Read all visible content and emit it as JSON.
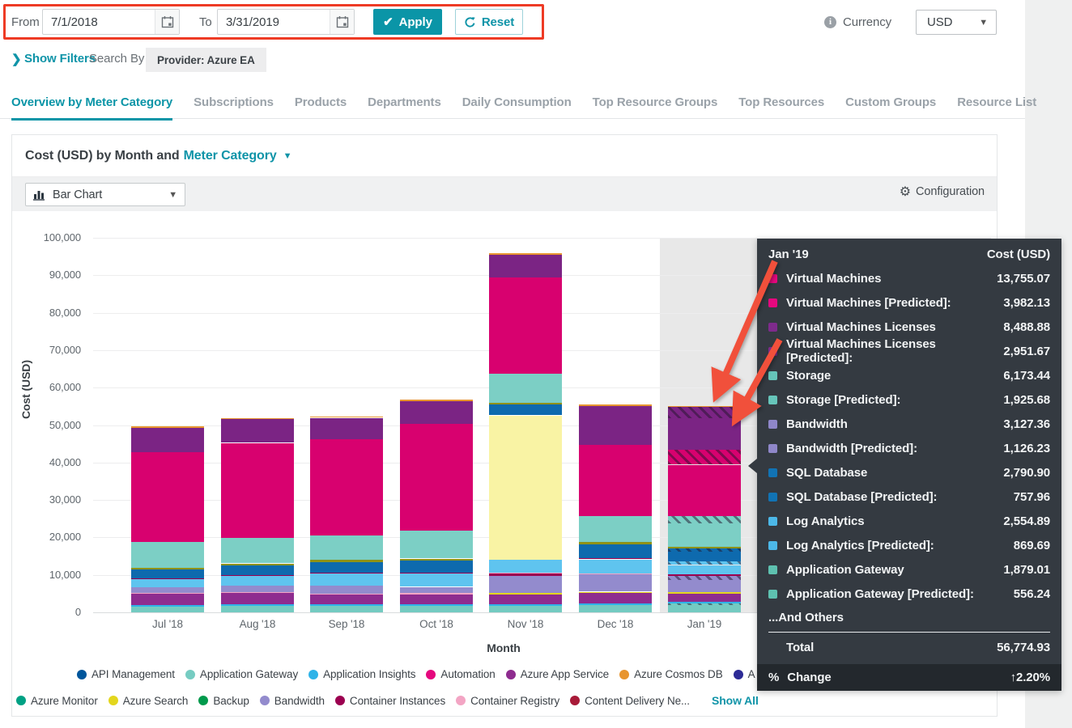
{
  "theme": {
    "accent": "#0b95a7",
    "annotation_red": "#f1503b",
    "tooltip_bg": "#343a41"
  },
  "filter_bar": {
    "from_label": "From",
    "from_value": "7/1/2018",
    "to_label": "To",
    "to_value": "3/31/2019",
    "apply_label": "Apply",
    "reset_label": "Reset",
    "currency_label": "Currency",
    "currency_value": "USD"
  },
  "filters_row": {
    "show_filters_label": "Show Filters",
    "search_by_label": "Search By",
    "provider_chip": "Provider: Azure EA"
  },
  "tabs": [
    {
      "label": "Overview by Meter Category",
      "active": true
    },
    {
      "label": "Subscriptions",
      "active": false
    },
    {
      "label": "Products",
      "active": false
    },
    {
      "label": "Departments",
      "active": false
    },
    {
      "label": "Daily Consumption",
      "active": false
    },
    {
      "label": "Top Resource Groups",
      "active": false
    },
    {
      "label": "Top Resources",
      "active": false
    },
    {
      "label": "Custom Groups",
      "active": false
    },
    {
      "label": "Resource List",
      "active": false
    }
  ],
  "chart_card": {
    "title_prefix": "Cost (USD) by Month and",
    "title_link": "Meter Category",
    "chart_type_label": "Bar Chart",
    "configuration_label": "Configuration"
  },
  "chart_data": {
    "type": "bar",
    "stacked": true,
    "title": "Cost (USD) by Month and Meter Category",
    "xlabel": "Month",
    "ylabel": "Cost (USD)",
    "ylim": [
      0,
      100000
    ],
    "ytick_step": 10000,
    "categories": [
      "Jul '18",
      "Aug '18",
      "Sep '18",
      "Oct '18",
      "Nov '18",
      "Dec '18",
      "Jan '19"
    ],
    "highlighted_category": "Jan '19",
    "palette": {
      "appGw": "#74cbc1",
      "insights": "#2eb3e8",
      "appService": "#8e2c8f",
      "registry": "#f3a5c4",
      "bandwidth": "#938bcd",
      "logAnalytics": "#5fc4ef",
      "maroon": "#9c0050",
      "sql": "#0e6aae",
      "olive": "#8f9218",
      "storage": "#7ccfc5",
      "vm": "#d8016f",
      "vmLic": "#7b2484",
      "orange": "#e8952f",
      "search": "#f9f3a4",
      "yellow": "#e3d61d"
    },
    "stacks": [
      [
        [
          "appGw",
          1600
        ],
        [
          "insights",
          400
        ],
        [
          "appService",
          3000
        ],
        [
          "registry",
          300
        ],
        [
          "bandwidth",
          1400
        ],
        [
          "logAnalytics",
          2200
        ],
        [
          "maroon",
          250
        ],
        [
          "sql",
          2250
        ],
        [
          "olive",
          450
        ],
        [
          "storage",
          7000
        ],
        [
          "vm",
          24000
        ],
        [
          "vmLic",
          6400
        ],
        [
          "orange",
          400
        ]
      ],
      [
        [
          "appGw",
          1700
        ],
        [
          "insights",
          400
        ],
        [
          "appService",
          3000
        ],
        [
          "registry",
          350
        ],
        [
          "bandwidth",
          1700
        ],
        [
          "logAnalytics",
          2600
        ],
        [
          "maroon",
          250
        ],
        [
          "sql",
          2600
        ],
        [
          "olive",
          450
        ],
        [
          "storage",
          6900
        ],
        [
          "vm",
          25300
        ],
        [
          "vmLic",
          6300
        ],
        [
          "orange",
          400
        ]
      ],
      [
        [
          "appGw",
          1700
        ],
        [
          "insights",
          400
        ],
        [
          "appService",
          2600
        ],
        [
          "registry",
          300
        ],
        [
          "bandwidth",
          2100
        ],
        [
          "logAnalytics",
          3200
        ],
        [
          "maroon",
          250
        ],
        [
          "sql",
          2900
        ],
        [
          "olive",
          500
        ],
        [
          "storage",
          6500
        ],
        [
          "vm",
          25700
        ],
        [
          "vmLic",
          5800
        ],
        [
          "orange",
          400
        ]
      ],
      [
        [
          "appGw",
          1800
        ],
        [
          "insights",
          400
        ],
        [
          "appService",
          2600
        ],
        [
          "registry",
          300
        ],
        [
          "bandwidth",
          1700
        ],
        [
          "logAnalytics",
          3600
        ],
        [
          "maroon",
          250
        ],
        [
          "sql",
          3200
        ],
        [
          "olive",
          500
        ],
        [
          "storage",
          7500
        ],
        [
          "vm",
          28500
        ],
        [
          "vmLic",
          6000
        ],
        [
          "orange",
          400
        ]
      ],
      [
        [
          "appGw",
          1800
        ],
        [
          "insights",
          400
        ],
        [
          "appService",
          2600
        ],
        [
          "yellow",
          400
        ],
        [
          "bandwidth",
          4600
        ],
        [
          "maroon",
          500
        ],
        [
          "registry",
          300
        ],
        [
          "logAnalytics",
          3400
        ],
        [
          "search",
          38600
        ],
        [
          "sql",
          2900
        ],
        [
          "olive",
          400
        ],
        [
          "storage",
          7900
        ],
        [
          "vm",
          25600
        ],
        [
          "vmLic",
          6000
        ],
        [
          "orange",
          400
        ]
      ],
      [
        [
          "appGw",
          1900
        ],
        [
          "insights",
          400
        ],
        [
          "appService",
          2800
        ],
        [
          "yellow",
          400
        ],
        [
          "bandwidth",
          4600
        ],
        [
          "registry",
          350
        ],
        [
          "logAnalytics",
          3700
        ],
        [
          "maroon",
          250
        ],
        [
          "sql",
          3800
        ],
        [
          "olive",
          500
        ],
        [
          "storage",
          7100
        ],
        [
          "vm",
          18900
        ],
        [
          "vmLic",
          10400
        ],
        [
          "orange",
          400
        ]
      ],
      [
        [
          "appGw",
          1879
        ],
        [
          "appGw",
          556,
          true
        ],
        [
          "insights",
          300
        ],
        [
          "appService",
          2300
        ],
        [
          "yellow",
          400
        ],
        [
          "bandwidth",
          3127
        ],
        [
          "bandwidth",
          1126,
          true
        ],
        [
          "maroon",
          400
        ],
        [
          "logAnalytics",
          2555
        ],
        [
          "logAnalytics",
          870,
          true
        ],
        [
          "sql",
          2791
        ],
        [
          "sql",
          758,
          true
        ],
        [
          "olive",
          500
        ],
        [
          "storage",
          6173
        ],
        [
          "storage",
          1926,
          true
        ],
        [
          "vm",
          13755
        ],
        [
          "vm",
          3982,
          true
        ],
        [
          "vmLic",
          8489
        ],
        [
          "vmLic",
          2952,
          true
        ],
        [
          "orange",
          300
        ]
      ]
    ]
  },
  "tooltip": {
    "title": "Jan '19",
    "value_header": "Cost (USD)",
    "rows": [
      {
        "label": "Virtual Machines",
        "value": "13,755.07",
        "color": "#e5087e"
      },
      {
        "label": "Virtual Machines [Predicted]:",
        "value": "3,982.13",
        "color": "#e5087e"
      },
      {
        "label": "Virtual Machines Licenses",
        "value": "8,488.88",
        "color": "#7e2b8c"
      },
      {
        "label": "Virtual Machines Licenses [Predicted]:",
        "value": "2,951.67",
        "color": "#7e2b8c"
      },
      {
        "label": "Storage",
        "value": "6,173.44",
        "color": "#66c5ba"
      },
      {
        "label": "Storage [Predicted]:",
        "value": "1,925.68",
        "color": "#66c5ba"
      },
      {
        "label": "Bandwidth",
        "value": "3,127.36",
        "color": "#8f87c9"
      },
      {
        "label": "Bandwidth [Predicted]:",
        "value": "1,126.23",
        "color": "#8f87c9"
      },
      {
        "label": "SQL Database",
        "value": "2,790.90",
        "color": "#1173b4"
      },
      {
        "label": "SQL Database [Predicted]:",
        "value": "757.96",
        "color": "#1173b4"
      },
      {
        "label": "Log Analytics",
        "value": "2,554.89",
        "color": "#4cb8e8"
      },
      {
        "label": "Log Analytics [Predicted]:",
        "value": "869.69",
        "color": "#4cb8e8"
      },
      {
        "label": "Application Gateway",
        "value": "1,879.01",
        "color": "#5ec1b0"
      },
      {
        "label": "Application Gateway [Predicted]:",
        "value": "556.24",
        "color": "#5ec1b0"
      }
    ],
    "and_others_label": "...And Others",
    "total_label": "Total",
    "total_value": "56,774.93",
    "change_prefix": "%",
    "change_label": "Change",
    "change_arrow": "↑",
    "change_value": "2.20%"
  },
  "legend": {
    "row1": [
      {
        "label": "API Management",
        "color": "#00569c"
      },
      {
        "label": "Application Gateway",
        "color": "#76ccc2"
      },
      {
        "label": "Application Insights",
        "color": "#2eb3e8"
      },
      {
        "label": "Automation",
        "color": "#e5087e"
      },
      {
        "label": "Azure App Service",
        "color": "#8e2c8f"
      },
      {
        "label": "Azure Cosmos DB",
        "color": "#e8952f"
      },
      {
        "label": "A",
        "color": "#2d2b96"
      }
    ],
    "row2": [
      {
        "label": "Azure Monitor",
        "color": "#00a184"
      },
      {
        "label": "Azure Search",
        "color": "#e3d61d"
      },
      {
        "label": "Backup",
        "color": "#009a4c"
      },
      {
        "label": "Bandwidth",
        "color": "#938bcd"
      },
      {
        "label": "Container Instances",
        "color": "#9c0050"
      },
      {
        "label": "Container Registry",
        "color": "#f3a5c4"
      },
      {
        "label": "Content Delivery Ne...",
        "color": "#a81a38"
      }
    ],
    "show_all_label": "Show All"
  }
}
